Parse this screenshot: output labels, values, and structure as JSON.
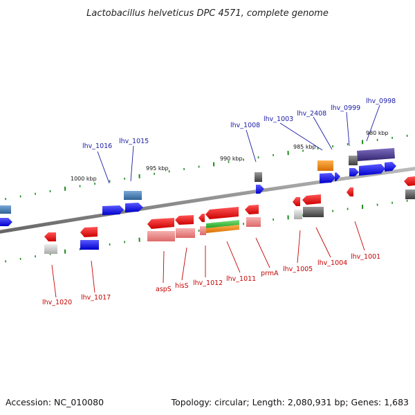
{
  "title": "Lactobacillus helveticus DPC 4571, complete genome",
  "footer": {
    "accession": "Accession: NC_010080",
    "summary": "Topology: circular; Length: 2,080,931 bp; Genes: 1,683"
  },
  "scale_labels": [
    "1000 kbp",
    "995 kbp",
    "990 kbp",
    "985 kbp",
    "980 kbp"
  ],
  "top_labels": [
    "lhv_1016",
    "lhv_1015",
    "lhv_1008",
    "lhv_1003",
    "lhv_2408",
    "lhv_0999",
    "lhv_0998"
  ],
  "bottom_labels": [
    "lhv_1020",
    "lhv_1017",
    "aspS",
    "hisS",
    "lhv_1012",
    "lhv_1011",
    "prmA",
    "lhv_1005",
    "lhv_1004",
    "lhv_1001"
  ],
  "colors": {
    "forward_cds": "#1010ee",
    "reverse_cds": "#ee1010",
    "forward_func": "#3f7ab8",
    "reverse_func": "#ee8888",
    "dark_func": "#555555",
    "purple_func": "#4b3a8c",
    "orange_func": "#f08a10",
    "green_func": "#33bb33",
    "backbone": "#888888",
    "ticks": "#1a8a1a"
  }
}
